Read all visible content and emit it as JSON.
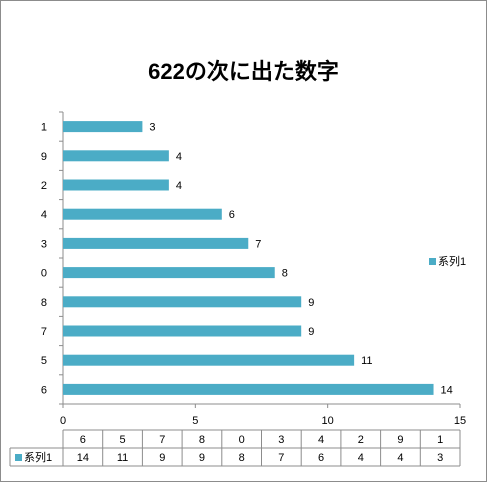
{
  "chart_data": {
    "type": "bar",
    "orientation": "horizontal",
    "title": "622の次に出た数字",
    "categories": [
      "6",
      "5",
      "7",
      "8",
      "0",
      "3",
      "4",
      "2",
      "9",
      "1"
    ],
    "series": [
      {
        "name": "系列1",
        "values": [
          14,
          11,
          9,
          9,
          8,
          7,
          6,
          4,
          4,
          3
        ],
        "color": "#4bacc6"
      }
    ],
    "xlim": [
      0,
      15
    ],
    "x_ticks": [
      0,
      5,
      10,
      15
    ],
    "grid": false,
    "legend": "right",
    "data_table": true,
    "data_labels": true
  }
}
